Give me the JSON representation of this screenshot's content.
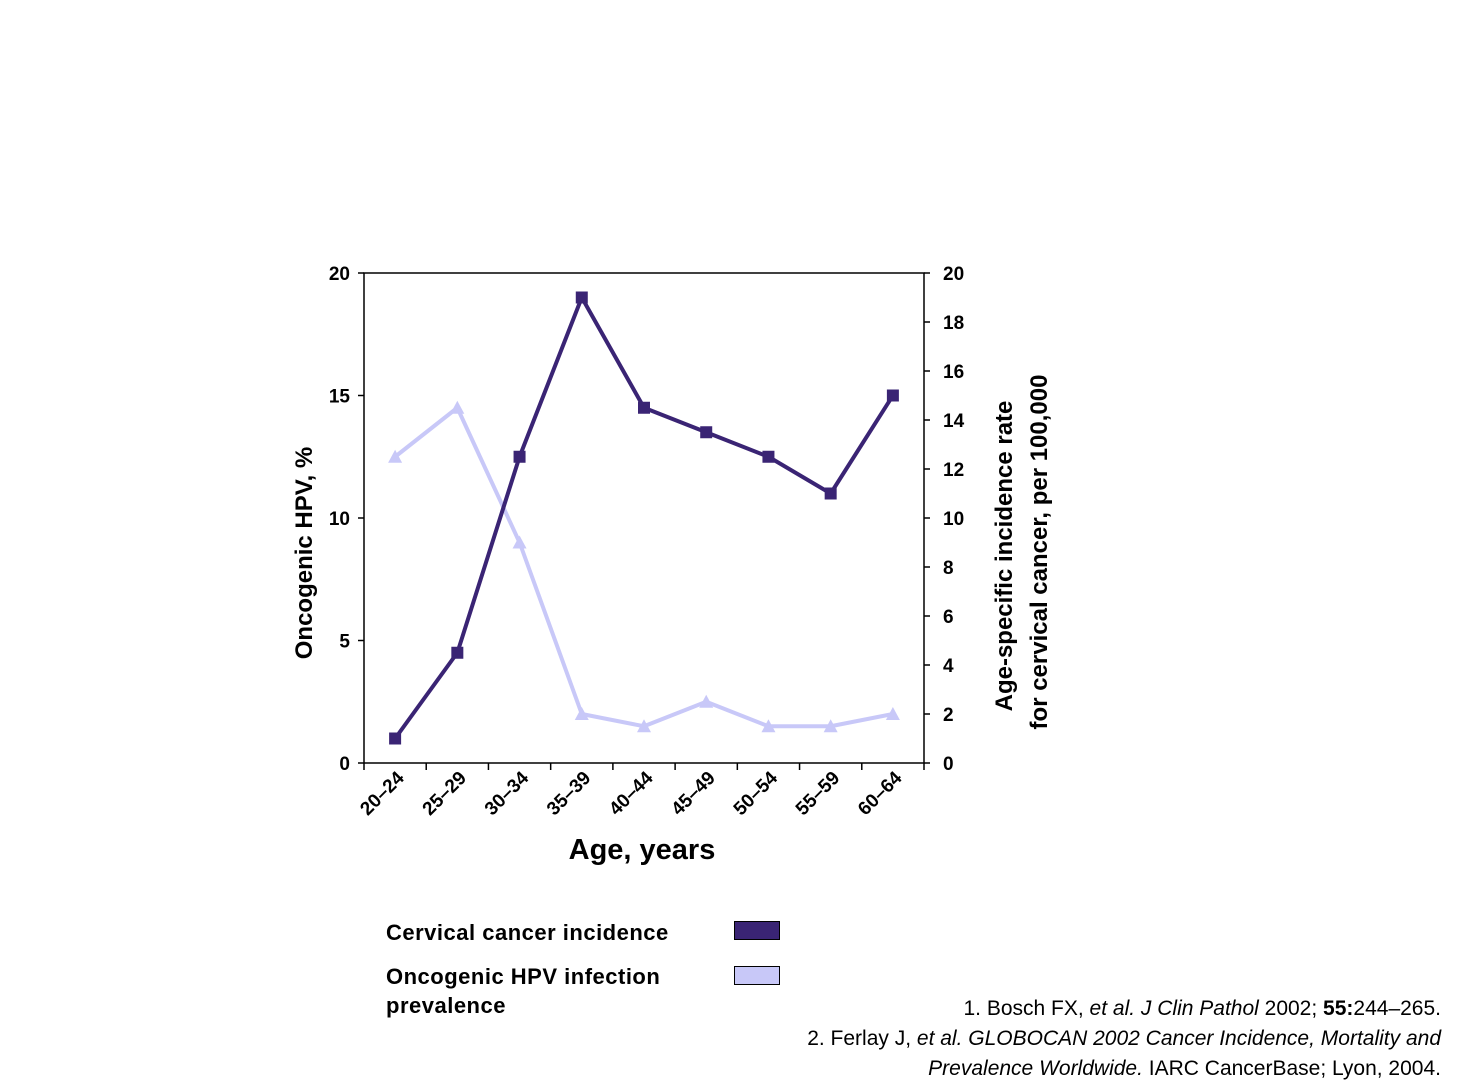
{
  "chart_data": {
    "type": "line",
    "categories": [
      "20–24",
      "25–29",
      "30–34",
      "35–39",
      "40–44",
      "45–49",
      "50–54",
      "55–59",
      "60–64"
    ],
    "xlabel": "Age, years",
    "ylabel_left": "Oncogenic HPV, %",
    "ylabel_right_line1": "Age-specific incidence rate",
    "ylabel_right_line2": "for cervical cancer, per 100,000",
    "ylim_left": [
      0,
      20
    ],
    "yticks_left": [
      "0",
      "5",
      "10",
      "15",
      "20"
    ],
    "ylim_right": [
      0,
      20
    ],
    "yticks_right": [
      "0",
      "2",
      "4",
      "6",
      "8",
      "10",
      "12",
      "14",
      "16",
      "18",
      "20"
    ],
    "grid": false,
    "series": [
      {
        "name": "Cervical cancer incidence",
        "color": "#3a2474",
        "marker": "square",
        "axis": "right",
        "values": [
          1.0,
          4.5,
          12.5,
          19.0,
          14.5,
          13.5,
          12.5,
          11.0,
          15.0
        ]
      },
      {
        "name": "Oncogenic HPV infection prevalence",
        "color": "#c8c8f8",
        "marker": "triangle",
        "axis": "left",
        "values": [
          12.5,
          14.5,
          9.0,
          2.0,
          1.5,
          2.5,
          1.5,
          1.5,
          2.0
        ]
      }
    ]
  },
  "legend": {
    "item1_label": "Cervical cancer incidence",
    "item1_color": "#3a2474",
    "item2_label_line1": "Oncogenic HPV infection",
    "item2_label_line2": "prevalence",
    "item2_color": "#c8c8f8"
  },
  "references": {
    "ref1_a": "1. Bosch FX, ",
    "ref1_b": "et al. J Clin Pathol",
    "ref1_c": " 2002; ",
    "ref1_d": "55:",
    "ref1_e": "244–265.",
    "ref2_a": "2. Ferlay J, ",
    "ref2_b": "et al. GLOBOCAN 2002 Cancer Incidence, Mortality and",
    "ref2_c": "Prevalence Worldwide.",
    "ref2_d": " IARC CancerBase; Lyon, 2004."
  }
}
